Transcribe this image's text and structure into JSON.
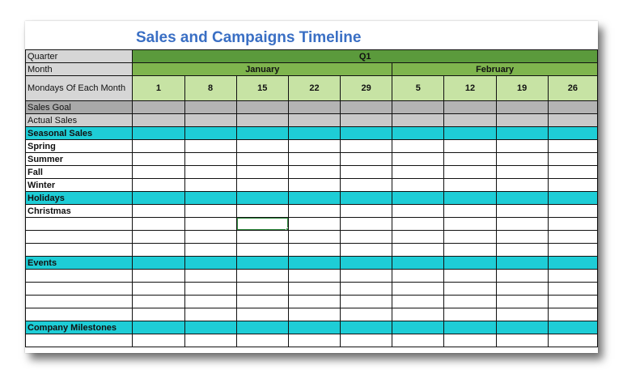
{
  "title": "Sales and Campaigns Timeline",
  "labels": {
    "quarter": "Quarter",
    "month": "Month",
    "mondays": "Mondays Of Each Month",
    "sales_goal": "Sales Goal",
    "actual_sales": "Actual Sales",
    "seasonal_sales": "Seasonal Sales",
    "spring": "Spring",
    "summer": "Summer",
    "fall": "Fall",
    "winter": "Winter",
    "holidays": "Holidays",
    "christmas": "Christmas",
    "events": "Events",
    "company_milestones": "Company Milestones"
  },
  "quarter_value": "Q1",
  "months": [
    "January",
    "February"
  ],
  "days": [
    "1",
    "8",
    "15",
    "22",
    "29",
    "5",
    "12",
    "19",
    "26"
  ],
  "colors": {
    "title": "#3a6fc4",
    "quarter_band": "#5b9a3c",
    "month_band": "#7fb54e",
    "day_cells": "#c7e3a4",
    "section_teal": "#1ecdd6",
    "selection": "#2e8b3e"
  }
}
